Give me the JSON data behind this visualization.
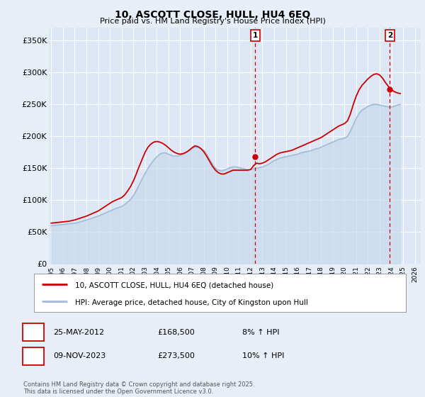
{
  "title": "10, ASCOTT CLOSE, HULL, HU4 6EQ",
  "subtitle": "Price paid vs. HM Land Registry's House Price Index (HPI)",
  "ylabel_ticks": [
    "£0",
    "£50K",
    "£100K",
    "£150K",
    "£200K",
    "£250K",
    "£300K",
    "£350K"
  ],
  "ytick_values": [
    0,
    50000,
    100000,
    150000,
    200000,
    250000,
    300000,
    350000
  ],
  "ylim": [
    0,
    370000
  ],
  "xlim_start": 1994.8,
  "xlim_end": 2026.5,
  "background_color": "#e8eef7",
  "plot_bg_color": "#dce6f5",
  "grid_color": "#ffffff",
  "line1_color": "#cc0000",
  "line2_color": "#a0bcd8",
  "fill2_color": "#c8daea",
  "marker1_date": 2012.39,
  "marker2_date": 2023.86,
  "marker1_value": 168500,
  "marker2_value": 273500,
  "vline_color": "#cc0000",
  "annotation1": {
    "label": "1",
    "date_str": "25-MAY-2012",
    "price": "£168,500",
    "hpi": "8% ↑ HPI"
  },
  "annotation2": {
    "label": "2",
    "date_str": "09-NOV-2023",
    "price": "£273,500",
    "hpi": "10% ↑ HPI"
  },
  "legend1": "10, ASCOTT CLOSE, HULL, HU4 6EQ (detached house)",
  "legend2": "HPI: Average price, detached house, City of Kingston upon Hull",
  "footer": "Contains HM Land Registry data © Crown copyright and database right 2025.\nThis data is licensed under the Open Government Licence v3.0.",
  "hpi_years": [
    1995.0,
    1995.25,
    1995.5,
    1995.75,
    1996.0,
    1996.25,
    1996.5,
    1996.75,
    1997.0,
    1997.25,
    1997.5,
    1997.75,
    1998.0,
    1998.25,
    1998.5,
    1998.75,
    1999.0,
    1999.25,
    1999.5,
    1999.75,
    2000.0,
    2000.25,
    2000.5,
    2000.75,
    2001.0,
    2001.25,
    2001.5,
    2001.75,
    2002.0,
    2002.25,
    2002.5,
    2002.75,
    2003.0,
    2003.25,
    2003.5,
    2003.75,
    2004.0,
    2004.25,
    2004.5,
    2004.75,
    2005.0,
    2005.25,
    2005.5,
    2005.75,
    2006.0,
    2006.25,
    2006.5,
    2006.75,
    2007.0,
    2007.25,
    2007.5,
    2007.75,
    2008.0,
    2008.25,
    2008.5,
    2008.75,
    2009.0,
    2009.25,
    2009.5,
    2009.75,
    2010.0,
    2010.25,
    2010.5,
    2010.75,
    2011.0,
    2011.25,
    2011.5,
    2011.75,
    2012.0,
    2012.25,
    2012.5,
    2012.75,
    2013.0,
    2013.25,
    2013.5,
    2013.75,
    2014.0,
    2014.25,
    2014.5,
    2014.75,
    2015.0,
    2015.25,
    2015.5,
    2015.75,
    2016.0,
    2016.25,
    2016.5,
    2016.75,
    2017.0,
    2017.25,
    2017.5,
    2017.75,
    2018.0,
    2018.25,
    2018.5,
    2018.75,
    2019.0,
    2019.25,
    2019.5,
    2019.75,
    2020.0,
    2020.25,
    2020.5,
    2020.75,
    2021.0,
    2021.25,
    2021.5,
    2021.75,
    2022.0,
    2022.25,
    2022.5,
    2022.75,
    2023.0,
    2023.25,
    2023.5,
    2023.75,
    2024.0,
    2024.25,
    2024.5,
    2024.75
  ],
  "hpi_values": [
    60000,
    60500,
    61000,
    61500,
    62000,
    62500,
    63000,
    63500,
    64000,
    65000,
    66000,
    67500,
    69000,
    70500,
    72000,
    73500,
    75000,
    77000,
    79000,
    81000,
    83000,
    85000,
    87000,
    88500,
    90000,
    93000,
    97000,
    101000,
    107000,
    115000,
    124000,
    133000,
    142000,
    150000,
    157000,
    163000,
    168000,
    172000,
    174000,
    174000,
    172000,
    170000,
    169000,
    169000,
    170000,
    172000,
    175000,
    178000,
    181000,
    183000,
    183000,
    181000,
    178000,
    172000,
    164000,
    156000,
    150000,
    147000,
    146000,
    147000,
    149000,
    151000,
    152000,
    152000,
    151000,
    150000,
    149000,
    148000,
    148000,
    149000,
    150000,
    151000,
    152000,
    154000,
    156000,
    159000,
    162000,
    164000,
    166000,
    167000,
    168000,
    169000,
    170000,
    171000,
    172000,
    174000,
    175000,
    176000,
    177000,
    178000,
    180000,
    181000,
    183000,
    185000,
    187000,
    189000,
    191000,
    193000,
    195000,
    196000,
    197000,
    200000,
    208000,
    218000,
    228000,
    236000,
    241000,
    244000,
    247000,
    249000,
    250000,
    250000,
    249000,
    248000,
    247000,
    246000,
    246000,
    247000,
    249000,
    250000
  ],
  "price_years": [
    1995.0,
    1995.25,
    1995.5,
    1995.75,
    1996.0,
    1996.25,
    1996.5,
    1996.75,
    1997.0,
    1997.25,
    1997.5,
    1997.75,
    1998.0,
    1998.25,
    1998.5,
    1998.75,
    1999.0,
    1999.25,
    1999.5,
    1999.75,
    2000.0,
    2000.25,
    2000.5,
    2000.75,
    2001.0,
    2001.25,
    2001.5,
    2001.75,
    2002.0,
    2002.25,
    2002.5,
    2002.75,
    2003.0,
    2003.25,
    2003.5,
    2003.75,
    2004.0,
    2004.25,
    2004.5,
    2004.75,
    2005.0,
    2005.25,
    2005.5,
    2005.75,
    2006.0,
    2006.25,
    2006.5,
    2006.75,
    2007.0,
    2007.25,
    2007.5,
    2007.75,
    2008.0,
    2008.25,
    2008.5,
    2008.75,
    2009.0,
    2009.25,
    2009.5,
    2009.75,
    2010.0,
    2010.25,
    2010.5,
    2010.75,
    2011.0,
    2011.25,
    2011.5,
    2011.75,
    2012.0,
    2012.25,
    2012.5,
    2012.75,
    2013.0,
    2013.25,
    2013.5,
    2013.75,
    2014.0,
    2014.25,
    2014.5,
    2014.75,
    2015.0,
    2015.25,
    2015.5,
    2015.75,
    2016.0,
    2016.25,
    2016.5,
    2016.75,
    2017.0,
    2017.25,
    2017.5,
    2017.75,
    2018.0,
    2018.25,
    2018.5,
    2018.75,
    2019.0,
    2019.25,
    2019.5,
    2019.75,
    2020.0,
    2020.25,
    2020.5,
    2020.75,
    2021.0,
    2021.25,
    2021.5,
    2021.75,
    2022.0,
    2022.25,
    2022.5,
    2022.75,
    2023.0,
    2023.25,
    2023.5,
    2023.75,
    2024.0,
    2024.25,
    2024.5,
    2024.75
  ],
  "price_values": [
    64000,
    64500,
    65000,
    65500,
    66000,
    66500,
    67000,
    68000,
    69000,
    70500,
    72000,
    73500,
    75000,
    77000,
    79000,
    81000,
    83000,
    86000,
    89000,
    92000,
    95000,
    98000,
    100000,
    102000,
    104000,
    108000,
    114000,
    121000,
    130000,
    141000,
    153000,
    164000,
    175000,
    183000,
    188000,
    191000,
    192000,
    191000,
    189000,
    186000,
    182000,
    178000,
    175000,
    173000,
    172000,
    173000,
    175000,
    178000,
    182000,
    185000,
    184000,
    181000,
    176000,
    169000,
    161000,
    153000,
    147000,
    143000,
    141000,
    141000,
    143000,
    145000,
    147000,
    147000,
    147000,
    147000,
    147000,
    147000,
    148000,
    154000,
    158000,
    157000,
    158000,
    160000,
    163000,
    166000,
    169000,
    172000,
    174000,
    175000,
    176000,
    177000,
    178000,
    180000,
    182000,
    184000,
    186000,
    188000,
    190000,
    192000,
    194000,
    196000,
    198000,
    201000,
    204000,
    207000,
    210000,
    213000,
    216000,
    218000,
    220000,
    224000,
    235000,
    250000,
    263000,
    273000,
    280000,
    285000,
    290000,
    294000,
    297000,
    298000,
    296000,
    291000,
    284000,
    278000,
    273000,
    270000,
    268000,
    267000
  ]
}
